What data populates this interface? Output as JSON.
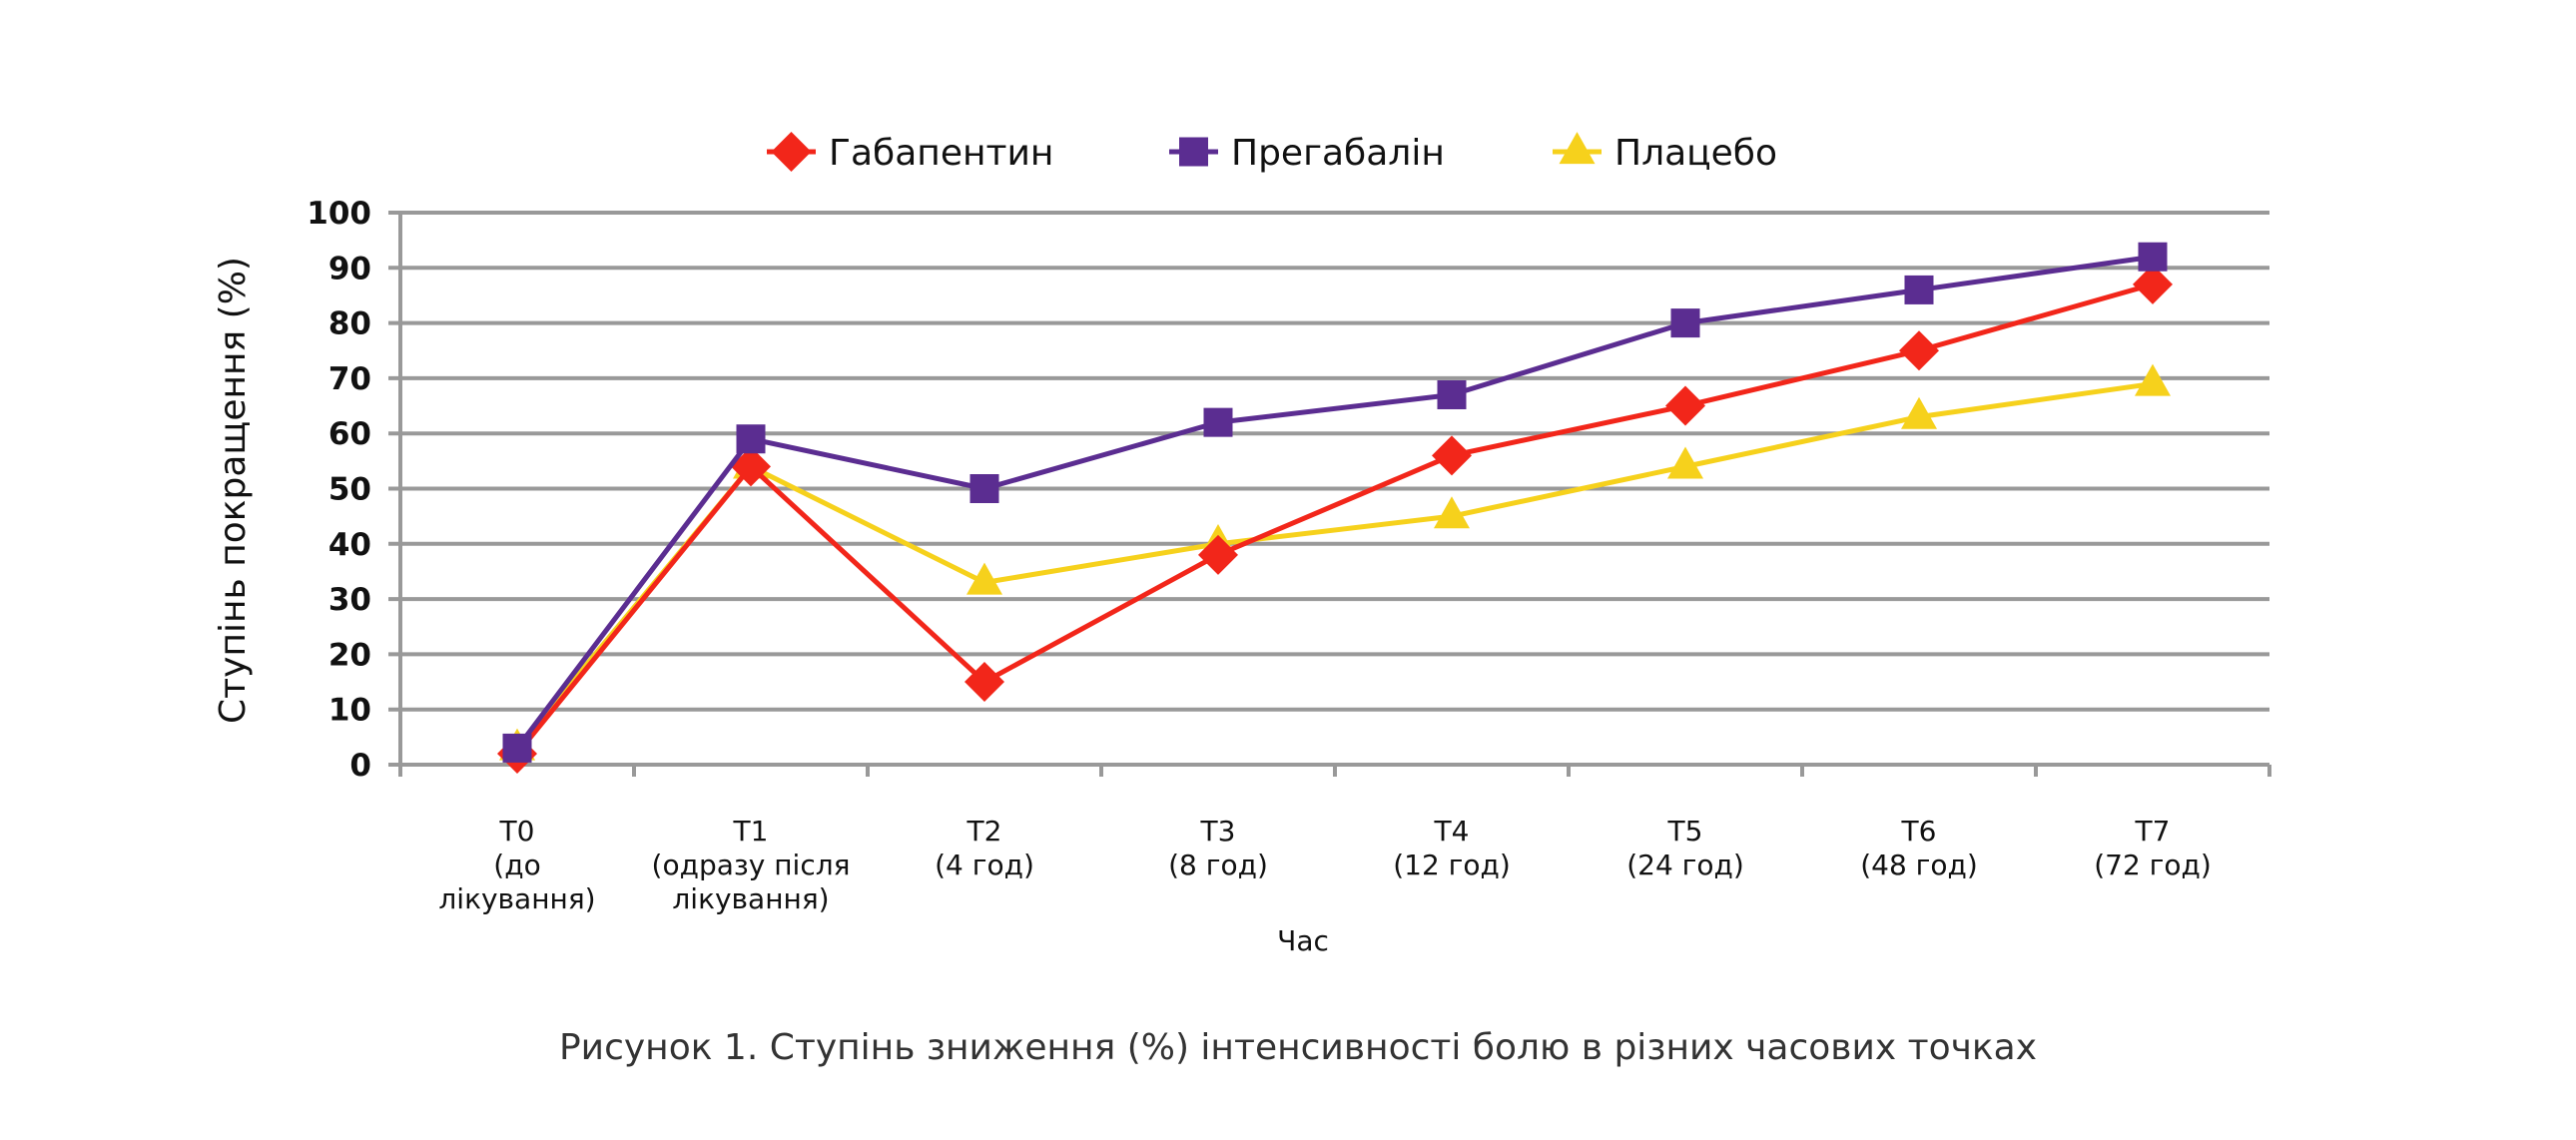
{
  "chart_data": {
    "type": "line",
    "title": "",
    "caption": "Рисунок 1. Ступінь зниження (%) інтенсивності болю в різних часових точках",
    "xlabel": "Час",
    "ylabel": "Ступінь покращення (%)",
    "ylim": [
      0,
      100
    ],
    "yticks": [
      "0",
      "10",
      "20",
      "30",
      "40",
      "50",
      "60",
      "70",
      "80",
      "90",
      "100"
    ],
    "ytick_values": [
      0,
      10,
      20,
      30,
      40,
      50,
      60,
      70,
      80,
      90,
      100
    ],
    "grid": true,
    "legend_position": "top-center",
    "categories": [
      [
        "T0",
        "(до",
        "лікування)"
      ],
      [
        "T1",
        "(одразу після",
        "лікування)"
      ],
      [
        "T2",
        "(4 год)"
      ],
      [
        "T3",
        "(8 год)"
      ],
      [
        "T4",
        "(12 год)"
      ],
      [
        "T5",
        "(24 год)"
      ],
      [
        "T6",
        "(48 год)"
      ],
      [
        "T7",
        "(72 год)"
      ]
    ],
    "series": [
      {
        "name": "Габапентин",
        "marker": "diamond",
        "color": "#F2261A",
        "values": [
          2,
          54,
          15,
          38,
          56,
          65,
          75,
          87
        ]
      },
      {
        "name": "Прегабалін",
        "marker": "square",
        "color": "#5B2D91",
        "values": [
          3,
          59,
          50,
          62,
          67,
          80,
          86,
          92
        ]
      },
      {
        "name": "Плацебо",
        "marker": "triangle",
        "color": "#F6D11C",
        "values": [
          3,
          54,
          33,
          40,
          45,
          54,
          63,
          69
        ]
      }
    ]
  }
}
